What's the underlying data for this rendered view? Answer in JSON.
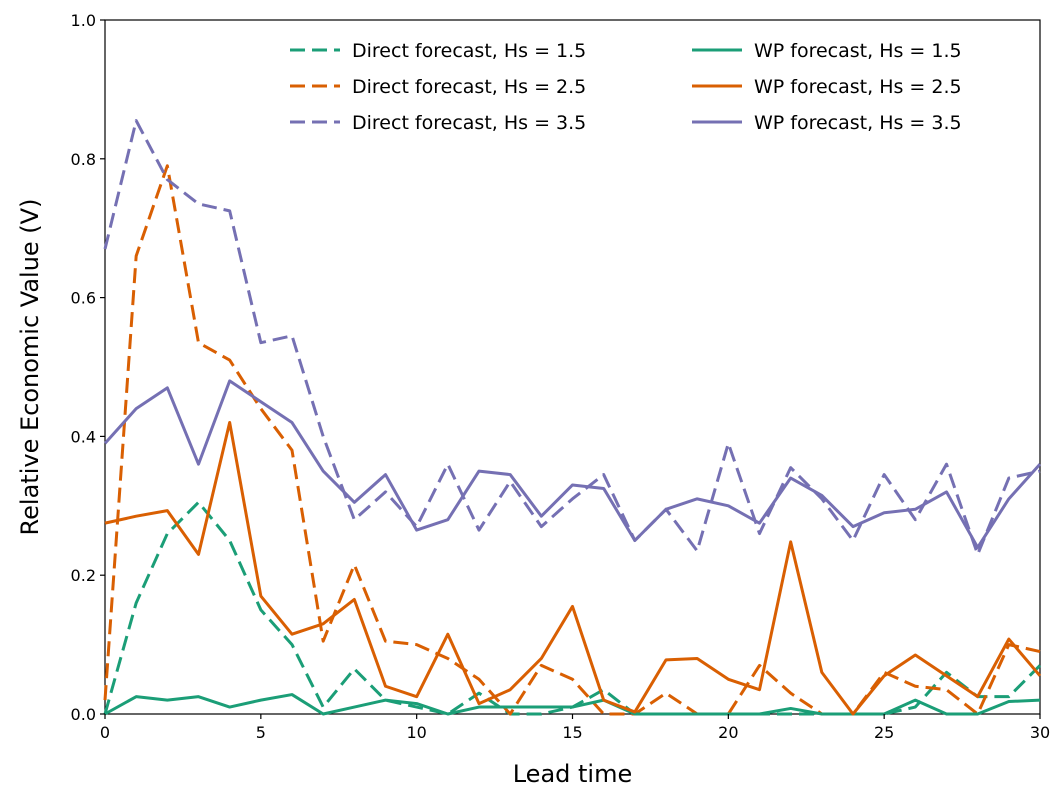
{
  "chart_data": {
    "type": "line",
    "title": "",
    "xlabel": "Lead time",
    "ylabel": "Relative Economic Value (V)",
    "xlim": [
      0,
      30
    ],
    "ylim": [
      0,
      1.0
    ],
    "xticks": [
      0,
      5,
      10,
      15,
      20,
      25,
      30
    ],
    "xtick_labels": [
      "0",
      "5",
      "10",
      "15",
      "20",
      "25",
      "30"
    ],
    "yticks": [
      0,
      0.2,
      0.4,
      0.6,
      0.8,
      1.0
    ],
    "ytick_labels": [
      "0.0",
      "0.2",
      "0.4",
      "0.6",
      "0.8",
      "1.0"
    ],
    "grid": false,
    "legend_position": "top-right",
    "x": [
      0,
      1,
      2,
      3,
      4,
      5,
      6,
      7,
      8,
      9,
      10,
      11,
      12,
      13,
      14,
      15,
      16,
      17,
      18,
      19,
      20,
      21,
      22,
      23,
      24,
      25,
      26,
      27,
      28,
      29,
      30
    ],
    "series": [
      {
        "name": "Direct forecast, Hs = 1.5",
        "color": "#1b9e77",
        "style": "dashed",
        "values": [
          0.0,
          0.16,
          0.26,
          0.305,
          0.25,
          0.15,
          0.1,
          0.01,
          0.065,
          0.02,
          0.01,
          0.0,
          0.03,
          0.0,
          0.0,
          0.01,
          0.035,
          0.0,
          0.0,
          0.0,
          0.0,
          0.0,
          0.0,
          0.0,
          0.0,
          0.0,
          0.01,
          0.06,
          0.025,
          0.025,
          0.07
        ]
      },
      {
        "name": "Direct forecast, Hs = 2.5",
        "color": "#d95f02",
        "style": "dashed",
        "values": [
          0.02,
          0.66,
          0.79,
          0.535,
          0.51,
          0.44,
          0.38,
          0.105,
          0.215,
          0.105,
          0.1,
          0.08,
          0.05,
          0.0,
          0.07,
          0.05,
          0.0,
          0.0,
          0.03,
          0.0,
          0.0,
          0.07,
          0.03,
          0.0,
          0.0,
          0.06,
          0.04,
          0.035,
          0.0,
          0.1,
          0.09
        ]
      },
      {
        "name": "Direct forecast, Hs = 3.5",
        "color": "#7570b3",
        "style": "dashed",
        "values": [
          0.67,
          0.855,
          0.77,
          0.735,
          0.725,
          0.535,
          0.545,
          0.4,
          0.28,
          0.32,
          0.27,
          0.36,
          0.265,
          0.335,
          0.27,
          0.31,
          0.345,
          0.25,
          0.295,
          0.235,
          0.39,
          0.26,
          0.355,
          0.31,
          0.25,
          0.345,
          0.28,
          0.36,
          0.23,
          0.34,
          0.35
        ]
      },
      {
        "name": "WP forecast, Hs = 1.5",
        "color": "#1b9e77",
        "style": "solid",
        "values": [
          0.0,
          0.025,
          0.02,
          0.025,
          0.01,
          0.02,
          0.028,
          0.0,
          0.01,
          0.02,
          0.015,
          0.0,
          0.01,
          0.01,
          0.01,
          0.01,
          0.02,
          0.0,
          0.0,
          0.0,
          0.0,
          0.0,
          0.008,
          0.0,
          0.0,
          0.0,
          0.02,
          0.0,
          0.0,
          0.018,
          0.02
        ]
      },
      {
        "name": "WP forecast, Hs = 2.5",
        "color": "#d95f02",
        "style": "solid",
        "values": [
          0.275,
          0.285,
          0.293,
          0.23,
          0.42,
          0.17,
          0.115,
          0.13,
          0.165,
          0.04,
          0.025,
          0.115,
          0.015,
          0.035,
          0.08,
          0.155,
          0.02,
          0.003,
          0.078,
          0.08,
          0.05,
          0.035,
          0.248,
          0.06,
          0.0,
          0.055,
          0.085,
          0.055,
          0.025,
          0.108,
          0.055
        ]
      },
      {
        "name": "WP forecast, Hs = 3.5",
        "color": "#7570b3",
        "style": "solid",
        "values": [
          0.39,
          0.44,
          0.47,
          0.36,
          0.48,
          0.45,
          0.42,
          0.35,
          0.305,
          0.345,
          0.265,
          0.28,
          0.35,
          0.345,
          0.285,
          0.33,
          0.325,
          0.25,
          0.295,
          0.31,
          0.3,
          0.275,
          0.34,
          0.315,
          0.27,
          0.29,
          0.295,
          0.32,
          0.24,
          0.31,
          0.36
        ]
      }
    ]
  }
}
